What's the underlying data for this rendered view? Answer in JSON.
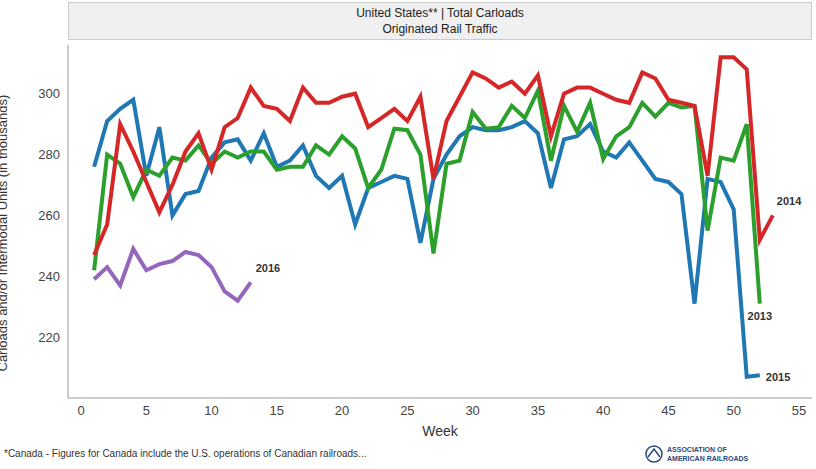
{
  "chart_data": {
    "type": "line",
    "title": "United States** | Total Carloads",
    "subtitle": "Originated Rail Traffic",
    "x_label": "Week",
    "y_label": "Carloads and/or Intermodal Units (in thousands)",
    "footnote": "*Canada - Figures for Canada include the U.S. operations of Canadian railroads...",
    "logo": [
      "ASSOCIATION OF",
      "AMERICAN RAILROADS"
    ],
    "grid": false,
    "marker": "none",
    "x": [
      1,
      2,
      3,
      4,
      5,
      6,
      7,
      8,
      9,
      10,
      11,
      12,
      13,
      14,
      15,
      16,
      17,
      18,
      19,
      20,
      21,
      22,
      23,
      24,
      25,
      26,
      27,
      28,
      29,
      30,
      31,
      32,
      33,
      34,
      35,
      36,
      37,
      38,
      39,
      40,
      41,
      42,
      43,
      44,
      45,
      46,
      47,
      48,
      49,
      50,
      51,
      52,
      53
    ],
    "xlim": [
      -1,
      56
    ],
    "xticks": [
      0,
      5,
      10,
      15,
      20,
      25,
      30,
      35,
      40,
      45,
      50,
      55
    ],
    "ylim": [
      200,
      316
    ],
    "yticks": [
      220,
      240,
      260,
      280,
      300
    ],
    "series": [
      {
        "name": "2015",
        "color": "#1f77b4",
        "values": [
          276,
          291,
          295,
          298,
          273,
          289,
          260,
          267,
          268,
          279,
          284,
          285,
          278,
          287,
          276,
          278,
          283,
          273,
          269,
          273,
          257,
          269,
          271,
          273,
          272,
          251,
          272,
          280,
          286,
          289,
          288,
          288,
          289,
          291,
          287,
          269,
          285,
          286,
          290,
          281,
          279,
          284,
          278,
          272,
          271,
          267,
          231,
          272,
          271,
          262,
          207,
          207.5,
          null
        ]
      },
      {
        "name": "2013",
        "color": "#2ca02c",
        "values": [
          242,
          280,
          277,
          266,
          275,
          273,
          279,
          278,
          283,
          277,
          281,
          279,
          281,
          281,
          275,
          276,
          276,
          283,
          280,
          286,
          282,
          269,
          275,
          288.5,
          288,
          280,
          247.5,
          277,
          278,
          294,
          288.5,
          289,
          296,
          292,
          301,
          278,
          296,
          287.5,
          297,
          278.5,
          286,
          289,
          297,
          292.5,
          297,
          295.5,
          296,
          255,
          279,
          278,
          290,
          231,
          null
        ]
      },
      {
        "name": "2014",
        "color": "#d62728",
        "values": [
          247,
          257,
          290,
          281,
          271,
          261,
          270,
          281,
          287,
          275,
          289,
          292,
          302,
          296,
          295,
          291,
          302,
          297,
          297,
          299,
          300,
          289,
          292,
          295,
          291,
          299,
          272,
          291,
          299,
          307,
          305,
          302,
          304,
          300,
          306,
          286,
          300,
          302,
          302,
          300,
          298,
          297,
          307,
          305,
          298,
          297,
          296,
          273,
          312,
          312,
          308,
          252,
          260
        ]
      },
      {
        "name": "2016",
        "color": "#9467bd",
        "values": [
          239,
          243,
          237,
          249,
          242,
          244,
          245,
          248,
          247,
          243,
          235,
          232,
          238,
          null,
          null,
          null,
          null,
          null,
          null,
          null,
          null,
          null,
          null,
          null,
          null,
          null,
          null,
          null,
          null,
          null,
          null,
          null,
          null,
          null,
          null,
          null,
          null,
          null,
          null,
          null,
          null,
          null,
          null,
          null,
          null,
          null,
          null,
          null,
          null,
          null,
          null,
          null,
          null
        ]
      }
    ]
  }
}
